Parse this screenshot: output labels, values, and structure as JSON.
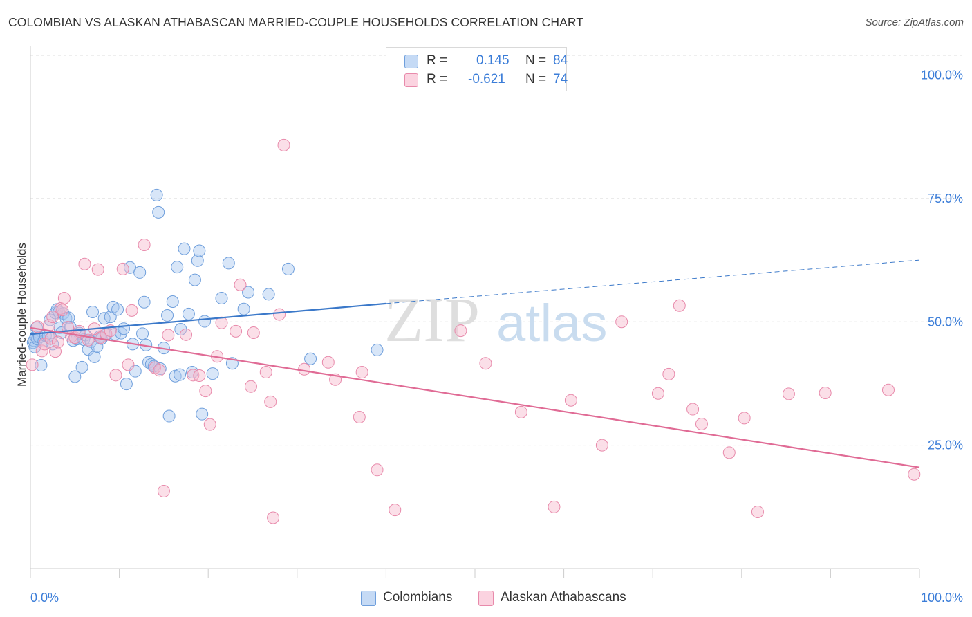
{
  "header": {
    "title": "COLOMBIAN VS ALASKAN ATHABASCAN MARRIED-COUPLE HOUSEHOLDS CORRELATION CHART",
    "source": "Source: ZipAtlas.com"
  },
  "watermark": {
    "zip": "ZIP",
    "atlas": "atlas"
  },
  "legend": {
    "rows": [
      {
        "r_label": "R =",
        "r_value": "0.145",
        "n_label": "N =",
        "n_value": "84",
        "color": "#a8c8f0"
      },
      {
        "r_label": "R =",
        "r_value": "-0.621",
        "n_label": "N =",
        "n_value": "74",
        "color": "#f7b8cc"
      }
    ]
  },
  "bottom_legend": [
    {
      "label": "Colombians",
      "color": "#a8c8f0"
    },
    {
      "label": "Alaskan Athabascans",
      "color": "#f7b8cc"
    }
  ],
  "chart_data": {
    "type": "scatter",
    "xlabel": "",
    "ylabel": "Married-couple Households",
    "xlim": [
      0,
      100
    ],
    "ylim": [
      0,
      104
    ],
    "x_tick_labels": [
      "0.0%",
      "100.0%"
    ],
    "y_ticks": [
      25,
      50,
      75,
      100
    ],
    "y_tick_labels": [
      "25.0%",
      "50.0%",
      "75.0%",
      "100.0%"
    ],
    "grid": true,
    "series": [
      {
        "name": "Colombians",
        "color": "#3a78c9",
        "fill": "#a8c8f0",
        "trend": {
          "x0": 0,
          "y0": 47.5,
          "x1": 40,
          "y1": 53.7,
          "dash_to_x": 100,
          "dash_to_y": 62.5
        },
        "points": [
          [
            0.3,
            45.8
          ],
          [
            0.4,
            46.2
          ],
          [
            0.5,
            44.9
          ],
          [
            0.6,
            47.0
          ],
          [
            0.7,
            48.8
          ],
          [
            0.8,
            46.5
          ],
          [
            1.0,
            46.9
          ],
          [
            1.2,
            41.2
          ],
          [
            1.5,
            46.1
          ],
          [
            1.7,
            47.2
          ],
          [
            2.0,
            47.1
          ],
          [
            2.2,
            50.4
          ],
          [
            2.5,
            45.5
          ],
          [
            2.8,
            51.8
          ],
          [
            3.0,
            52.5
          ],
          [
            3.2,
            52.0
          ],
          [
            3.3,
            48.8
          ],
          [
            3.5,
            47.8
          ],
          [
            3.7,
            51.7
          ],
          [
            4.0,
            50.7
          ],
          [
            4.3,
            50.8
          ],
          [
            4.5,
            48.9
          ],
          [
            4.8,
            46.2
          ],
          [
            5.0,
            38.9
          ],
          [
            5.2,
            46.5
          ],
          [
            5.5,
            47.7
          ],
          [
            5.8,
            40.8
          ],
          [
            6.0,
            46.4
          ],
          [
            6.2,
            47.3
          ],
          [
            6.5,
            44.4
          ],
          [
            6.8,
            46.0
          ],
          [
            7.0,
            52.0
          ],
          [
            7.2,
            42.9
          ],
          [
            7.5,
            45.0
          ],
          [
            7.8,
            47.0
          ],
          [
            8.0,
            46.6
          ],
          [
            8.3,
            50.7
          ],
          [
            8.5,
            47.4
          ],
          [
            9.0,
            51.0
          ],
          [
            9.3,
            53.0
          ],
          [
            9.5,
            47.5
          ],
          [
            9.8,
            52.5
          ],
          [
            10.2,
            47.7
          ],
          [
            10.5,
            48.6
          ],
          [
            10.8,
            37.4
          ],
          [
            11.2,
            61.0
          ],
          [
            11.5,
            45.5
          ],
          [
            11.8,
            40.0
          ],
          [
            12.3,
            60.0
          ],
          [
            12.6,
            47.6
          ],
          [
            12.8,
            54.0
          ],
          [
            13.0,
            45.3
          ],
          [
            13.3,
            41.8
          ],
          [
            13.6,
            41.4
          ],
          [
            13.9,
            41.0
          ],
          [
            14.2,
            75.7
          ],
          [
            14.4,
            72.2
          ],
          [
            14.6,
            40.5
          ],
          [
            15.0,
            44.7
          ],
          [
            15.4,
            51.3
          ],
          [
            15.6,
            30.9
          ],
          [
            16.0,
            54.1
          ],
          [
            16.3,
            39.0
          ],
          [
            16.5,
            61.1
          ],
          [
            16.8,
            39.3
          ],
          [
            16.9,
            48.5
          ],
          [
            17.3,
            64.8
          ],
          [
            17.8,
            51.6
          ],
          [
            18.2,
            39.8
          ],
          [
            18.5,
            58.5
          ],
          [
            18.8,
            62.4
          ],
          [
            19.0,
            64.4
          ],
          [
            19.3,
            31.3
          ],
          [
            19.6,
            50.1
          ],
          [
            21.5,
            54.8
          ],
          [
            22.3,
            61.9
          ],
          [
            22.7,
            41.6
          ],
          [
            24.0,
            52.6
          ],
          [
            24.5,
            56.0
          ],
          [
            26.8,
            55.6
          ],
          [
            29.0,
            60.7
          ],
          [
            31.5,
            42.5
          ],
          [
            39.0,
            44.3
          ],
          [
            20.5,
            39.5
          ]
        ]
      },
      {
        "name": "Alaskan Athabascans",
        "color": "#e06b95",
        "fill": "#f7b8cc",
        "trend": {
          "x0": 0,
          "y0": 48.8,
          "x1": 100,
          "y1": 20.5
        },
        "points": [
          [
            0.2,
            41.3
          ],
          [
            0.8,
            49.0
          ],
          [
            1.3,
            44.1
          ],
          [
            1.6,
            45.5
          ],
          [
            2.1,
            49.3
          ],
          [
            2.3,
            46.6
          ],
          [
            2.5,
            51.0
          ],
          [
            2.8,
            44.0
          ],
          [
            3.1,
            45.9
          ],
          [
            3.4,
            52.7
          ],
          [
            3.6,
            52.4
          ],
          [
            3.8,
            54.8
          ],
          [
            4.2,
            48.9
          ],
          [
            4.6,
            47.0
          ],
          [
            5.0,
            46.8
          ],
          [
            5.5,
            48.1
          ],
          [
            6.1,
            61.7
          ],
          [
            6.5,
            46.3
          ],
          [
            7.2,
            48.6
          ],
          [
            7.6,
            60.6
          ],
          [
            7.9,
            46.8
          ],
          [
            8.5,
            47.6
          ],
          [
            9.0,
            48.2
          ],
          [
            9.6,
            39.2
          ],
          [
            10.4,
            60.7
          ],
          [
            11.0,
            41.3
          ],
          [
            11.4,
            52.3
          ],
          [
            12.8,
            65.6
          ],
          [
            14.0,
            40.7
          ],
          [
            14.5,
            40.2
          ],
          [
            15.0,
            15.7
          ],
          [
            15.5,
            47.3
          ],
          [
            17.5,
            47.4
          ],
          [
            18.3,
            39.2
          ],
          [
            19.0,
            39.1
          ],
          [
            19.7,
            36.0
          ],
          [
            20.2,
            29.2
          ],
          [
            21.0,
            43.0
          ],
          [
            21.5,
            49.8
          ],
          [
            23.1,
            48.1
          ],
          [
            23.6,
            57.5
          ],
          [
            24.8,
            36.9
          ],
          [
            25.1,
            47.8
          ],
          [
            26.5,
            39.8
          ],
          [
            27.0,
            33.8
          ],
          [
            27.3,
            10.3
          ],
          [
            28.0,
            51.5
          ],
          [
            28.5,
            85.8
          ],
          [
            30.8,
            40.4
          ],
          [
            33.5,
            41.8
          ],
          [
            34.3,
            38.3
          ],
          [
            37.0,
            30.7
          ],
          [
            37.3,
            39.8
          ],
          [
            39.0,
            20.0
          ],
          [
            41.0,
            11.9
          ],
          [
            48.4,
            48.2
          ],
          [
            51.2,
            41.6
          ],
          [
            55.2,
            31.7
          ],
          [
            58.9,
            12.5
          ],
          [
            60.8,
            34.1
          ],
          [
            64.3,
            25.0
          ],
          [
            66.5,
            50.0
          ],
          [
            70.6,
            35.5
          ],
          [
            71.8,
            39.4
          ],
          [
            73.0,
            53.3
          ],
          [
            74.5,
            32.3
          ],
          [
            75.5,
            29.3
          ],
          [
            78.6,
            23.5
          ],
          [
            80.3,
            30.5
          ],
          [
            81.8,
            11.5
          ],
          [
            85.3,
            35.4
          ],
          [
            89.4,
            35.6
          ],
          [
            96.5,
            36.2
          ],
          [
            99.4,
            19.1
          ]
        ]
      }
    ]
  }
}
